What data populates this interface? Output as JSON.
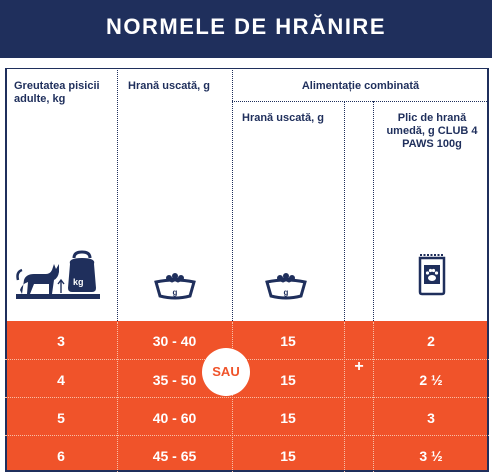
{
  "title": "NORMELE DE HRĂNIRE",
  "headers": {
    "weight": "Greutatea pisicii adulte, kg",
    "dry_food": "Hrană uscată, g",
    "combined": "Alimentație combinată",
    "combined_dry": "Hrană uscată, g",
    "combined_wet": "Plic de hrană umedă, g CLUB 4 PAWS 100g"
  },
  "icons": {
    "weight_icon": "cat-on-scale-icon",
    "weight_icon_label": "kg",
    "bowl_label": "g",
    "pouch_icon": "paw-pouch-icon"
  },
  "sau_label": "SAU",
  "plus_label": "+",
  "rows": [
    {
      "weight": "3",
      "dry": "30 - 40",
      "combined_dry": "15",
      "wet": "2"
    },
    {
      "weight": "4",
      "dry": "35 - 50",
      "combined_dry": "15",
      "wet": "2 ½"
    },
    {
      "weight": "5",
      "dry": "40 - 60",
      "combined_dry": "15",
      "wet": "3"
    },
    {
      "weight": "6",
      "dry": "45 - 65",
      "combined_dry": "15",
      "wet": "3 ½"
    }
  ],
  "colors": {
    "navy": "#1f2f5c",
    "orange": "#f0532a",
    "white": "#ffffff"
  }
}
